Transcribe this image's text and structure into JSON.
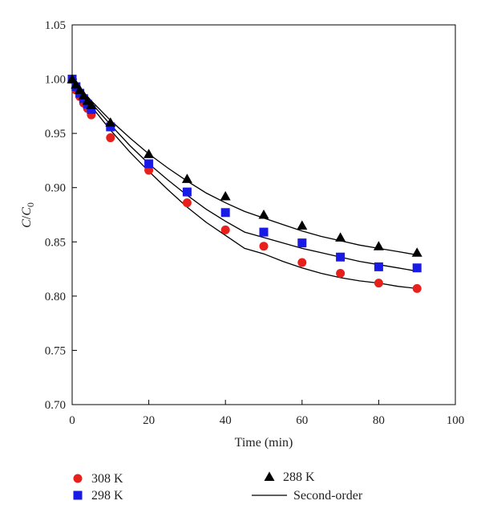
{
  "chart_data": {
    "type": "scatter",
    "xlabel": "Time (min)",
    "ylabel": {
      "main": "C",
      "sep": "/",
      "denom": "C",
      "denom_sub": "0"
    },
    "xlim": [
      0,
      100
    ],
    "ylim": [
      0.7,
      1.05
    ],
    "xticks": [
      0,
      20,
      40,
      60,
      80,
      100
    ],
    "yticks": [
      0.7,
      0.75,
      0.8,
      0.85,
      0.9,
      0.95,
      1.0,
      1.05
    ],
    "xtick_labels": [
      "0",
      "20",
      "40",
      "60",
      "80",
      "100"
    ],
    "ytick_labels": [
      "0.70",
      "0.75",
      "0.80",
      "0.85",
      "0.90",
      "0.95",
      "1.00",
      "1.05"
    ],
    "grid": false,
    "legend_position": "bottom",
    "series": [
      {
        "name": "308 K",
        "marker": "circle",
        "color": "#e8201c",
        "x": [
          0,
          1,
          2,
          3,
          4,
          5,
          10,
          20,
          30,
          40,
          50,
          60,
          70,
          80,
          90
        ],
        "y": [
          1.0,
          0.99,
          0.984,
          0.978,
          0.973,
          0.967,
          0.946,
          0.916,
          0.886,
          0.861,
          0.846,
          0.831,
          0.821,
          0.812,
          0.807
        ]
      },
      {
        "name": "298 K",
        "marker": "square",
        "color": "#1a1ae6",
        "x": [
          0,
          1,
          2,
          3,
          4,
          5,
          10,
          20,
          30,
          40,
          50,
          60,
          70,
          80,
          90
        ],
        "y": [
          1.0,
          0.993,
          0.987,
          0.982,
          0.977,
          0.972,
          0.956,
          0.922,
          0.896,
          0.877,
          0.859,
          0.849,
          0.836,
          0.827,
          0.826
        ]
      },
      {
        "name": "288 K",
        "marker": "triangle",
        "color": "#000000",
        "x": [
          0,
          1,
          2,
          3,
          4,
          5,
          10,
          20,
          30,
          40,
          50,
          60,
          70,
          80,
          90
        ],
        "y": [
          1.0,
          0.995,
          0.99,
          0.985,
          0.98,
          0.976,
          0.96,
          0.931,
          0.908,
          0.892,
          0.875,
          0.865,
          0.854,
          0.846,
          0.84
        ]
      }
    ],
    "fit_lines": [
      {
        "for": "308 K",
        "x": [
          0,
          5,
          10,
          15,
          20,
          25,
          30,
          35,
          40,
          45,
          50,
          55,
          60,
          65,
          70,
          75,
          80,
          85,
          90
        ],
        "y": [
          1.0,
          0.975,
          0.953,
          0.933,
          0.915,
          0.898,
          0.882,
          0.868,
          0.856,
          0.844,
          0.839,
          0.832,
          0.826,
          0.821,
          0.817,
          0.814,
          0.812,
          0.809,
          0.807
        ]
      },
      {
        "for": "298 K",
        "x": [
          0,
          5,
          10,
          15,
          20,
          25,
          30,
          35,
          40,
          45,
          50,
          55,
          60,
          65,
          70,
          75,
          80,
          85,
          90
        ],
        "y": [
          1.0,
          0.978,
          0.958,
          0.939,
          0.922,
          0.907,
          0.893,
          0.88,
          0.869,
          0.859,
          0.854,
          0.849,
          0.844,
          0.84,
          0.836,
          0.832,
          0.829,
          0.826,
          0.823
        ]
      },
      {
        "for": "288 K",
        "x": [
          0,
          5,
          10,
          15,
          20,
          25,
          30,
          35,
          40,
          45,
          50,
          55,
          60,
          65,
          70,
          75,
          80,
          85,
          90
        ],
        "y": [
          1.0,
          0.98,
          0.962,
          0.946,
          0.931,
          0.918,
          0.906,
          0.895,
          0.886,
          0.878,
          0.872,
          0.866,
          0.86,
          0.855,
          0.851,
          0.847,
          0.844,
          0.841,
          0.838
        ]
      }
    ],
    "legend": [
      {
        "label": "308 K",
        "marker": "circle",
        "color": "#e8201c"
      },
      {
        "label": "298 K",
        "marker": "square",
        "color": "#1a1ae6"
      },
      {
        "label": "288 K",
        "marker": "triangle",
        "color": "#000000"
      },
      {
        "label": "Second-order",
        "marker": "line",
        "color": "#000000"
      }
    ]
  }
}
